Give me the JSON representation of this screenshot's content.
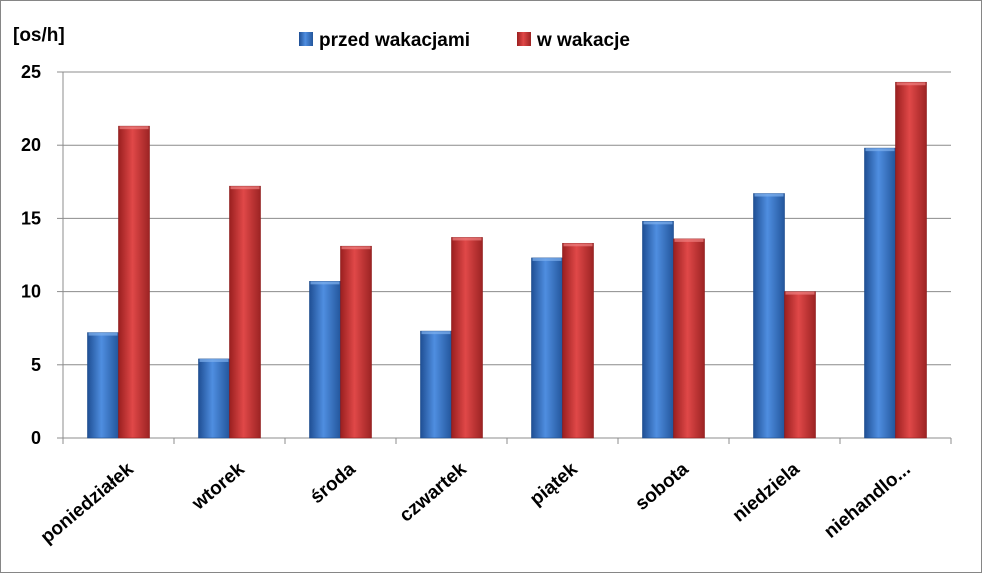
{
  "chart_data": {
    "type": "bar",
    "title": "",
    "xlabel": "",
    "ylabel": "[os/h]",
    "ylim": [
      0,
      25
    ],
    "yticks": [
      0,
      5,
      10,
      15,
      20,
      25
    ],
    "grid": true,
    "legend_position": "top",
    "categories": [
      "poniedziałek",
      "wtorek",
      "środa",
      "czwartek",
      "piątek",
      "sobota",
      "niedziela",
      "niehandlo..."
    ],
    "series": [
      {
        "name": "przed wakacjami",
        "color": "#3a78c9",
        "values": [
          7.2,
          5.4,
          10.7,
          7.3,
          12.3,
          14.8,
          16.7,
          19.8
        ]
      },
      {
        "name": "w wakacje",
        "color": "#d03434",
        "values": [
          21.3,
          17.2,
          13.1,
          13.7,
          13.3,
          13.6,
          10.0,
          24.3
        ]
      }
    ]
  }
}
